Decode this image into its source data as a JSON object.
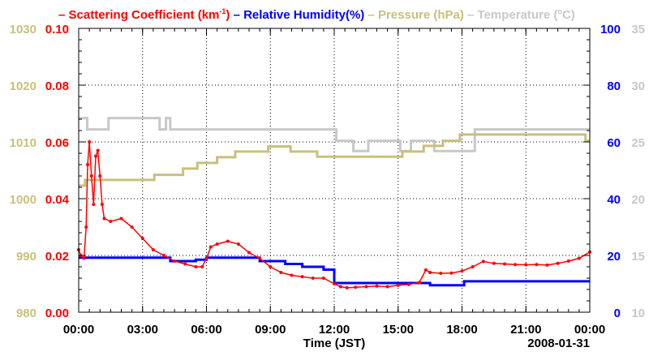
{
  "chart_data": {
    "type": "line",
    "title_parts": [
      {
        "dash": "–",
        "text": "Scattering Coefficient (km",
        "sup": "-1",
        "tail": ")",
        "color": "#ff0000"
      },
      {
        "dash": "–",
        "text": "Relative Humidity(%)",
        "color": "#0000ff"
      },
      {
        "dash": "–",
        "text": "Pressure (hPa)",
        "color": "#c8c07c"
      },
      {
        "dash": "–",
        "text": "Temperature (",
        "sup": "o",
        "tail": "C)",
        "color": "#c8c8c8"
      }
    ],
    "xlabel": "Time (JST)",
    "date_label": "2008-01-31",
    "x_unit": "hours",
    "xlim": [
      0,
      24
    ],
    "x_ticks": [
      "00:00",
      "03:00",
      "06:00",
      "09:00",
      "12:00",
      "15:00",
      "18:00",
      "21:00",
      "00:00"
    ],
    "grid": true,
    "axes": {
      "scattering": {
        "side": "left-inner",
        "range": [
          0,
          0.1
        ],
        "ticks": [
          "0.00",
          "0.02",
          "0.04",
          "0.06",
          "0.08",
          "0.10"
        ],
        "color": "#ff0000"
      },
      "pressure": {
        "side": "left-outer",
        "range": [
          980,
          1030
        ],
        "ticks": [
          "980",
          "990",
          "1000",
          "1010",
          "1020",
          "1030"
        ],
        "color": "#c8c07c"
      },
      "humidity": {
        "side": "right-inner",
        "range": [
          0,
          100
        ],
        "ticks": [
          "0",
          "20",
          "40",
          "60",
          "80",
          "100"
        ],
        "color": "#0000ff"
      },
      "temperature": {
        "side": "right-outer",
        "range": [
          10,
          35
        ],
        "ticks": [
          "10",
          "15",
          "20",
          "25",
          "30",
          "35"
        ],
        "color": "#c8c8c8"
      }
    },
    "series": [
      {
        "name": "Scattering Coefficient",
        "axis": "scattering",
        "color": "#ff0000",
        "style": "line-markers",
        "x": [
          0,
          0.1,
          0.25,
          0.35,
          0.42,
          0.5,
          0.6,
          0.7,
          0.8,
          0.9,
          1.0,
          1.1,
          1.2,
          1.5,
          2.0,
          2.5,
          3.0,
          3.5,
          4.0,
          4.5,
          5.0,
          5.5,
          5.8,
          6.0,
          6.2,
          6.5,
          7.0,
          7.5,
          8.0,
          8.5,
          9.0,
          9.5,
          10.0,
          10.5,
          11.0,
          11.5,
          12.0,
          12.3,
          12.6,
          13.0,
          13.5,
          14.0,
          14.5,
          15.0,
          15.5,
          16.0,
          16.3,
          16.5,
          17.0,
          17.5,
          18.0,
          18.5,
          19.0,
          19.5,
          20.0,
          20.5,
          21.0,
          21.5,
          22.0,
          22.5,
          23.0,
          23.5,
          24.0
        ],
        "y": [
          0.022,
          0.02,
          0.019,
          0.03,
          0.052,
          0.06,
          0.048,
          0.038,
          0.055,
          0.057,
          0.048,
          0.038,
          0.033,
          0.032,
          0.033,
          0.03,
          0.026,
          0.022,
          0.02,
          0.018,
          0.017,
          0.016,
          0.016,
          0.019,
          0.023,
          0.024,
          0.025,
          0.024,
          0.021,
          0.019,
          0.016,
          0.014,
          0.013,
          0.0125,
          0.012,
          0.012,
          0.01,
          0.009,
          0.0086,
          0.0088,
          0.009,
          0.0092,
          0.009,
          0.0095,
          0.0098,
          0.0105,
          0.0149,
          0.014,
          0.0137,
          0.0138,
          0.0145,
          0.016,
          0.0179,
          0.0172,
          0.017,
          0.0168,
          0.0167,
          0.0168,
          0.0166,
          0.0172,
          0.018,
          0.019,
          0.0212
        ]
      },
      {
        "name": "Relative Humidity",
        "axis": "humidity",
        "color": "#0000ff",
        "style": "step",
        "x": [
          0,
          4.3,
          5.5,
          6.0,
          8.5,
          9.7,
          10.5,
          11.5,
          12.0,
          16.5,
          18.1
        ],
        "y": [
          19.2,
          18.0,
          18.5,
          19.2,
          18.0,
          17.0,
          16.0,
          15.0,
          10.3,
          9.5,
          10.9
        ]
      },
      {
        "name": "Pressure",
        "axis": "pressure",
        "color": "#c8c07c",
        "style": "step",
        "x": [
          0,
          0.3,
          3.55,
          4.9,
          5.57,
          6.5,
          7.35,
          8.9,
          9.95,
          11.2,
          15.2,
          16.2,
          17.1,
          17.9,
          23.8
        ],
        "y": [
          1002.3,
          1003.3,
          1004.2,
          1005.3,
          1006.3,
          1007.3,
          1008.3,
          1009.2,
          1008.3,
          1007.4,
          1008.3,
          1009.3,
          1010.2,
          1011.3,
          1010.2
        ]
      },
      {
        "name": "Temperature",
        "axis": "temperature",
        "color": "#c8c8c8",
        "style": "step",
        "x": [
          0,
          0.4,
          1.4,
          3.8,
          4.1,
          4.3,
          12.1,
          12.9,
          13.6,
          15.1,
          15.6,
          16.7,
          18.6
        ],
        "y": [
          27.1,
          26.1,
          27.1,
          26.1,
          27.1,
          26.1,
          25.1,
          24.2,
          25.1,
          24.2,
          25.1,
          24.2,
          26.1
        ]
      }
    ]
  }
}
